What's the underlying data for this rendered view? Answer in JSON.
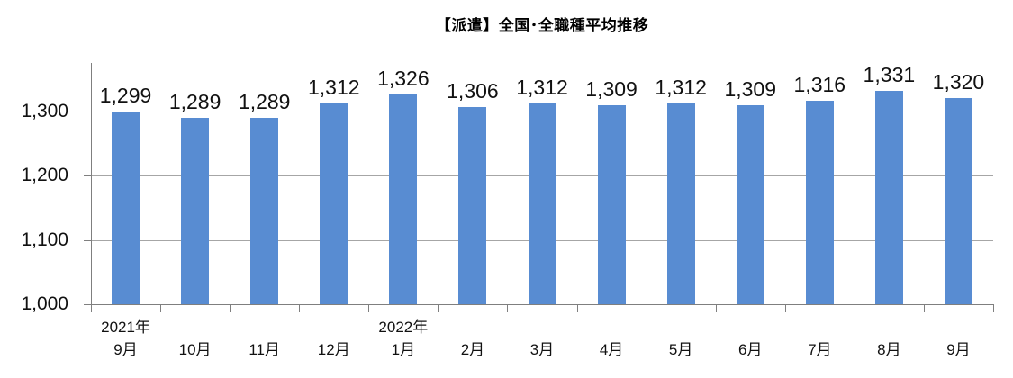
{
  "chart_data": {
    "type": "bar",
    "title": "【派遣】全国･全職種平均推移",
    "xlabel": "",
    "ylabel": "",
    "categories": [
      "9月",
      "10月",
      "11月",
      "12月",
      "1月",
      "2月",
      "3月",
      "4月",
      "5月",
      "6月",
      "7月",
      "8月",
      "9月"
    ],
    "year_markers": [
      {
        "category_index": 0,
        "label": "2021年"
      },
      {
        "category_index": 4,
        "label": "2022年"
      }
    ],
    "values": [
      1299,
      1289,
      1289,
      1312,
      1326,
      1306,
      1312,
      1309,
      1312,
      1309,
      1316,
      1331,
      1320
    ],
    "value_labels": [
      "1,299",
      "1,289",
      "1,289",
      "1,312",
      "1,326",
      "1,306",
      "1,312",
      "1,309",
      "1,312",
      "1,309",
      "1,316",
      "1,331",
      "1,320"
    ],
    "ylim": [
      1000,
      1375
    ],
    "yticks": [
      {
        "value": 1000,
        "label": "1,000"
      },
      {
        "value": 1100,
        "label": "1,100"
      },
      {
        "value": 1200,
        "label": "1,200"
      },
      {
        "value": 1300,
        "label": "1,300"
      }
    ],
    "grid": true,
    "legend": false,
    "colors": {
      "bar": "#588CD2",
      "gridline": "#A6A6A6",
      "axis": "#7F7F7F",
      "text": "#111111"
    }
  }
}
